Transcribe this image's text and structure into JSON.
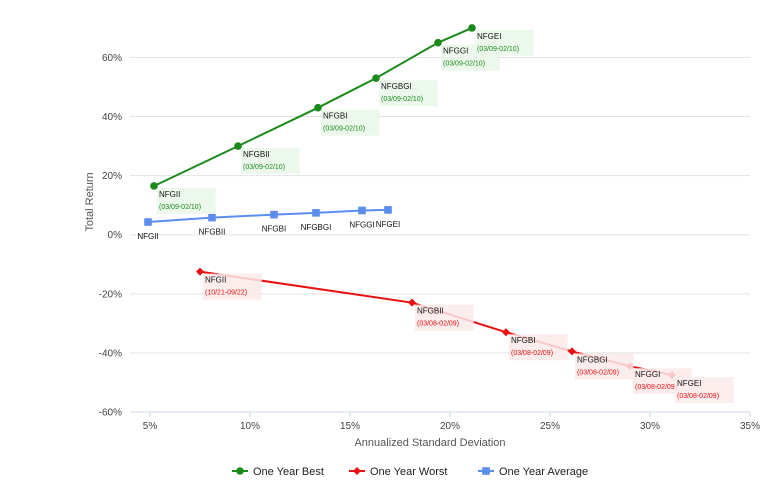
{
  "chart_data": {
    "type": "line",
    "xlabel": "Annualized Standard Deviation",
    "ylabel": "Total Return",
    "xlim": [
      4,
      35
    ],
    "ylim": [
      -60,
      72
    ],
    "x_ticks": [
      5,
      10,
      15,
      20,
      25,
      30,
      35
    ],
    "x_tick_labels": [
      "5%",
      "10%",
      "15%",
      "20%",
      "25%",
      "30%",
      "35%"
    ],
    "y_ticks": [
      -60,
      -40,
      -20,
      0,
      20,
      40,
      60
    ],
    "y_tick_labels": [
      "-60%",
      "-40%",
      "-20%",
      "0%",
      "20%",
      "40%",
      "60%"
    ],
    "grid": "horizontal",
    "legend_position": "bottom",
    "series": [
      {
        "name": "One Year Best",
        "color": "#1a8a1a",
        "marker": "circle",
        "label_bg": "#eaf7ea",
        "points": [
          {
            "x": 5.2,
            "y": 16.5,
            "label": "NFGII",
            "period": "(03/09-02/10)"
          },
          {
            "x": 9.4,
            "y": 30.0,
            "label": "NFGBII",
            "period": "(03/09-02/10)"
          },
          {
            "x": 13.4,
            "y": 43.0,
            "label": "NFGBI",
            "period": "(03/09-02/10)"
          },
          {
            "x": 16.3,
            "y": 53.0,
            "label": "NFGBGI",
            "period": "(03/09-02/10)"
          },
          {
            "x": 19.4,
            "y": 65.0,
            "label": "NFGGI",
            "period": "(03/09-02/10)"
          },
          {
            "x": 21.1,
            "y": 70.0,
            "label": "NFGEI",
            "period": "(03/09-02/10)"
          }
        ]
      },
      {
        "name": "One Year Worst",
        "color": "#e81010",
        "marker": "diamond",
        "label_bg": "#fbeaea",
        "points": [
          {
            "x": 7.5,
            "y": -12.5,
            "label": "NFGII",
            "period": "(10/21-09/22)"
          },
          {
            "x": 18.1,
            "y": -23.0,
            "label": "NFGBII",
            "period": "(03/08-02/09)"
          },
          {
            "x": 22.8,
            "y": -33.0,
            "label": "NFGBI",
            "period": "(03/08-02/09)"
          },
          {
            "x": 26.1,
            "y": -39.5,
            "label": "NFGBGI",
            "period": "(03/08-02/09)"
          },
          {
            "x": 29.0,
            "y": -44.5,
            "label": "NFGGI",
            "period": "(03/08-02/09)"
          },
          {
            "x": 31.1,
            "y": -47.5,
            "label": "NFGEI",
            "period": "(03/08-02/09)"
          }
        ]
      },
      {
        "name": "One Year Average",
        "color": "#5b8def",
        "marker": "square",
        "points": [
          {
            "x": 4.9,
            "y": 4.3,
            "label": "NFGII"
          },
          {
            "x": 8.1,
            "y": 5.8,
            "label": "NFGBII"
          },
          {
            "x": 11.2,
            "y": 6.8,
            "label": "NFGBI"
          },
          {
            "x": 13.3,
            "y": 7.4,
            "label": "NFGBGI"
          },
          {
            "x": 15.6,
            "y": 8.2,
            "label": "NFGGI"
          },
          {
            "x": 16.9,
            "y": 8.4,
            "label": "NFGEI"
          }
        ]
      }
    ]
  }
}
